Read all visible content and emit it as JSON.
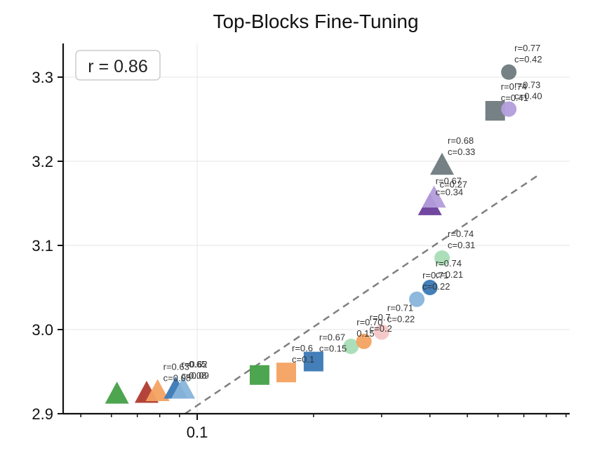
{
  "chart_data": {
    "type": "scatter",
    "title": "Top-Blocks Fine-Tuning",
    "xlabel": "",
    "ylabel": "",
    "x_scale": "log",
    "xlim": [
      0.045,
      0.92
    ],
    "ylim": [
      2.9,
      3.34
    ],
    "x_tick_labels": [
      "0.1"
    ],
    "y_tick_labels": [
      "2.9",
      "3.0",
      "3.1",
      "3.2",
      "3.3"
    ],
    "grid": true,
    "correlation_label": "r = 0.86",
    "fit_line": {
      "style": "dashed",
      "color": "#7f7f7f",
      "x": [
        0.093,
        0.76
      ],
      "y": [
        2.9,
        3.183
      ]
    },
    "points": [
      {
        "x": 0.062,
        "y": 2.924,
        "marker": "triangle",
        "color": "#43a047",
        "r": "",
        "c": ""
      },
      {
        "x": 0.074,
        "y": 2.925,
        "marker": "triangle",
        "color": "#b03a2e",
        "r": "",
        "c": ""
      },
      {
        "x": 0.079,
        "y": 2.927,
        "marker": "triangle",
        "color": "#f4a261",
        "r": "r=0.63",
        "c": "c=0.08"
      },
      {
        "x": 0.088,
        "y": 2.93,
        "marker": "triangle",
        "color": "#3a78b5",
        "r": "r=0.62",
        "c": "c=0.09"
      },
      {
        "x": 0.092,
        "y": 2.93,
        "marker": "triangle",
        "color": "#88b4da",
        "r": "0.65",
        "c": "0.08"
      },
      {
        "x": 0.145,
        "y": 2.946,
        "marker": "square",
        "color": "#43a047",
        "r": "",
        "c": ""
      },
      {
        "x": 0.17,
        "y": 2.949,
        "marker": "square",
        "color": "#f4a261",
        "r": "r=0.6",
        "c": "c=0.1"
      },
      {
        "x": 0.2,
        "y": 2.962,
        "marker": "square",
        "color": "#3a78b5",
        "r": "r=0.67",
        "c": "c=0.15"
      },
      {
        "x": 0.25,
        "y": 2.98,
        "marker": "circle",
        "color": "#a8ddb5",
        "r": "r=0.70",
        "c": "0.15"
      },
      {
        "x": 0.27,
        "y": 2.986,
        "marker": "circle",
        "color": "#f4a261",
        "r": "r=0.7",
        "c": "c=0.2"
      },
      {
        "x": 0.3,
        "y": 2.997,
        "marker": "circle",
        "color": "#f6c6c6",
        "r": "r=0.71",
        "c": "c=0.22"
      },
      {
        "x": 0.37,
        "y": 3.036,
        "marker": "circle",
        "color": "#88b4da",
        "r": "r=0.71",
        "c": "c=0.22"
      },
      {
        "x": 0.4,
        "y": 3.05,
        "marker": "circle",
        "color": "#3a78b5",
        "r": "r=0.74",
        "c": "c=0.21"
      },
      {
        "x": 0.43,
        "y": 3.085,
        "marker": "circle",
        "color": "#a8ddb5",
        "r": "r=0.74",
        "c": "c=0.31"
      },
      {
        "x": 0.4,
        "y": 3.148,
        "marker": "triangle",
        "color": "#6a3d9a",
        "r": "r=0.67",
        "c": "c=0.34"
      },
      {
        "x": 0.41,
        "y": 3.157,
        "marker": "triangle",
        "color": "#b39ddb",
        "r": "",
        "c": "c=0.27"
      },
      {
        "x": 0.43,
        "y": 3.196,
        "marker": "triangle",
        "color": "#6e7a7e",
        "r": "r=0.68",
        "c": "c=0.33"
      },
      {
        "x": 0.59,
        "y": 3.26,
        "marker": "square",
        "color": "#6e7a7e",
        "r": "r=0.74",
        "c": "c=0.41"
      },
      {
        "x": 0.64,
        "y": 3.262,
        "marker": "circle",
        "color": "#b39ddb",
        "r": "r=0.73",
        "c": "c=0.40"
      },
      {
        "x": 0.64,
        "y": 3.306,
        "marker": "circle",
        "color": "#6e7a7e",
        "r": "r=0.77",
        "c": "c=0.42"
      }
    ]
  }
}
